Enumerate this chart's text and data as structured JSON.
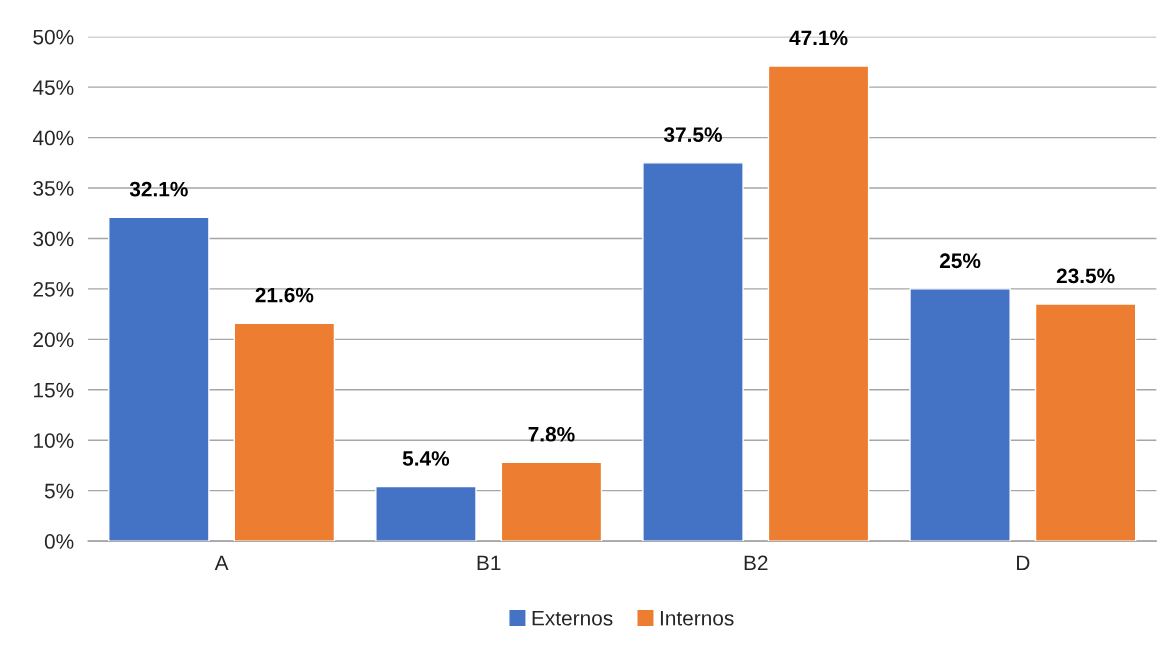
{
  "chart_data": {
    "type": "bar",
    "categories": [
      "A",
      "B1",
      "B2",
      "D"
    ],
    "series": [
      {
        "name": "Externos",
        "color": "#4472c4",
        "values": [
          32.1,
          5.4,
          37.5,
          25
        ],
        "value_labels": [
          "32.1%",
          "5.4%",
          "37.5%",
          "25%"
        ]
      },
      {
        "name": "Internos",
        "color": "#ed7d31",
        "values": [
          21.6,
          7.8,
          47.1,
          23.5
        ],
        "value_labels": [
          "21.6%",
          "7.8%",
          "47.1%",
          "23.5%"
        ]
      }
    ],
    "ylim": [
      0,
      50
    ],
    "yticks": [
      {
        "value": 0,
        "label": "0%"
      },
      {
        "value": 5,
        "label": "5%"
      },
      {
        "value": 10,
        "label": "10%"
      },
      {
        "value": 15,
        "label": "15%"
      },
      {
        "value": 20,
        "label": "20%"
      },
      {
        "value": 25,
        "label": "25%"
      },
      {
        "value": 30,
        "label": "30%"
      },
      {
        "value": 35,
        "label": "35%"
      },
      {
        "value": 40,
        "label": "40%"
      },
      {
        "value": 45,
        "label": "45%"
      },
      {
        "value": 50,
        "label": "50%"
      }
    ],
    "grid": "y",
    "legend": "bottom"
  }
}
